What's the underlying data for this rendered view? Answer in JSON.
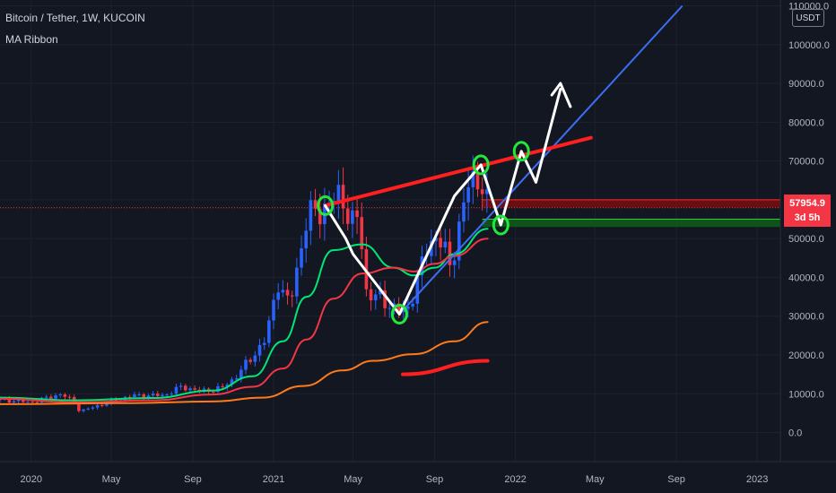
{
  "header": {
    "title": "Bitcoin / Tether, 1W, KUCOIN",
    "indicator": "MA Ribbon"
  },
  "price_scale": {
    "unit": "USDT",
    "current_price": "57954.9",
    "countdown": "3d 5h"
  },
  "colors": {
    "background": "#131722",
    "grid": "#1e222d",
    "up": "#2962ff",
    "down": "#f23645",
    "ma_fast": "#00e676",
    "ma_mid": "#f23645",
    "ma_slow": "#ff7a1a",
    "trend_line": "#3d6ff5",
    "resistance": "#ff1f1f",
    "pattern": "#ffffff",
    "circles": "#22e83a",
    "zone_red": "#7a0e0e",
    "zone_green": "#0f5a1a",
    "axis_text": "#b2b5be"
  },
  "chart_data": {
    "type": "candlestick",
    "title": "Bitcoin / Tether, 1W, KUCOIN",
    "indicator": "MA Ribbon",
    "y_ticks": [
      0,
      10000,
      20000,
      30000,
      40000,
      50000,
      60000,
      70000,
      80000,
      90000,
      100000,
      110000
    ],
    "y_tick_labels": [
      "0.0",
      "10000.0",
      "20000.0",
      "30000.0",
      "40000.0",
      "50000.0",
      "60000.0",
      "70000.0",
      "80000.0",
      "90000.0",
      "100000.0",
      "110000.0"
    ],
    "ylim": [
      -7500,
      111500
    ],
    "xlim": [
      "2019-11-15",
      "2023-02-05"
    ],
    "x_ticks": [
      "2020-01-01",
      "2020-05-01",
      "2020-09-01",
      "2021-01-01",
      "2021-05-01",
      "2021-09-01",
      "2022-01-01",
      "2022-05-01",
      "2022-09-01",
      "2023-01-01"
    ],
    "x_tick_labels": [
      "2020",
      "May",
      "Sep",
      "2021",
      "May",
      "Sep",
      "2022",
      "May",
      "Sep",
      "2023"
    ],
    "close_anchors": [
      [
        "2019-11-15",
        8500
      ],
      [
        "2020-01-01",
        7800
      ],
      [
        "2020-02-15",
        9900
      ],
      [
        "2020-03-05",
        8000
      ],
      [
        "2020-03-15",
        5400
      ],
      [
        "2020-04-15",
        7200
      ],
      [
        "2020-06-01",
        9500
      ],
      [
        "2020-07-20",
        9600
      ],
      [
        "2020-08-15",
        11800
      ],
      [
        "2020-09-15",
        10600
      ],
      [
        "2020-10-15",
        11500
      ],
      [
        "2020-11-01",
        13700
      ],
      [
        "2020-11-25",
        18500
      ],
      [
        "2020-12-20",
        24000
      ],
      [
        "2021-01-08",
        39000
      ],
      [
        "2021-01-25",
        32500
      ],
      [
        "2021-02-21",
        56000
      ],
      [
        "2021-03-10",
        57000
      ],
      [
        "2021-04-14",
        61500
      ],
      [
        "2021-04-28",
        53500
      ],
      [
        "2021-05-10",
        56000
      ],
      [
        "2021-05-20",
        36500
      ],
      [
        "2021-06-20",
        33500
      ],
      [
        "2021-07-20",
        30500
      ],
      [
        "2021-08-20",
        47000
      ],
      [
        "2021-09-05",
        51500
      ],
      [
        "2021-09-25",
        42500
      ],
      [
        "2021-10-20",
        63000
      ],
      [
        "2021-11-08",
        66500
      ],
      [
        "2021-11-20",
        57954.9
      ]
    ],
    "moving_averages": [
      {
        "color": "ma_fast",
        "points": [
          [
            "2019-11-15",
            9000
          ],
          [
            "2020-03-10",
            8300
          ],
          [
            "2020-07-01",
            8900
          ],
          [
            "2020-10-01",
            10800
          ],
          [
            "2020-12-01",
            14500
          ],
          [
            "2021-01-15",
            23500
          ],
          [
            "2021-02-20",
            35000
          ],
          [
            "2021-04-01",
            47000
          ],
          [
            "2021-05-15",
            48500
          ],
          [
            "2021-07-01",
            42500
          ],
          [
            "2021-08-01",
            40500
          ],
          [
            "2021-09-01",
            42500
          ],
          [
            "2021-10-01",
            46000
          ],
          [
            "2021-11-20",
            52500
          ]
        ]
      },
      {
        "color": "ma_mid",
        "points": [
          [
            "2019-11-15",
            8700
          ],
          [
            "2020-03-10",
            7800
          ],
          [
            "2020-07-01",
            8300
          ],
          [
            "2020-10-01",
            9800
          ],
          [
            "2020-12-01",
            11800
          ],
          [
            "2021-01-15",
            16500
          ],
          [
            "2021-02-20",
            24000
          ],
          [
            "2021-04-01",
            34500
          ],
          [
            "2021-05-15",
            41000
          ],
          [
            "2021-07-01",
            42500
          ],
          [
            "2021-08-01",
            41500
          ],
          [
            "2021-09-01",
            43500
          ],
          [
            "2021-10-01",
            45500
          ],
          [
            "2021-11-20",
            50000
          ]
        ]
      },
      {
        "color": "ma_slow",
        "points": [
          [
            "2019-11-15",
            7300
          ],
          [
            "2020-06-01",
            7600
          ],
          [
            "2020-10-01",
            8000
          ],
          [
            "2020-12-15",
            9000
          ],
          [
            "2021-02-15",
            12000
          ],
          [
            "2021-04-15",
            16000
          ],
          [
            "2021-06-01",
            18500
          ],
          [
            "2021-08-01",
            20200
          ],
          [
            "2021-10-01",
            23500
          ],
          [
            "2021-11-20",
            28500
          ]
        ]
      },
      {
        "color": "resistance",
        "points": [
          [
            "2021-07-15",
            15000
          ],
          [
            "2021-11-20",
            18500
          ]
        ],
        "width": 4
      }
    ],
    "annotations": {
      "resistance_line": [
        [
          "2021-03-20",
          58500
        ],
        [
          "2022-04-25",
          76000
        ]
      ],
      "trend_line": [
        [
          "2021-07-10",
          30500
        ],
        [
          "2022-09-10",
          110000
        ]
      ],
      "pattern_path": [
        [
          "2021-03-20",
          58500
        ],
        [
          "2021-04-20",
          50000
        ],
        [
          "2021-05-01",
          46000
        ],
        [
          "2021-07-10",
          30500
        ],
        [
          "2021-10-01",
          61000
        ],
        [
          "2021-11-10",
          69000
        ],
        [
          "2021-12-10",
          53500
        ],
        [
          "2022-01-10",
          72500
        ],
        [
          "2022-02-01",
          64500
        ],
        [
          "2022-03-10",
          88500
        ]
      ],
      "arrow_head": [
        [
          "2022-02-25",
          87000
        ],
        [
          "2022-03-10",
          90000
        ],
        [
          "2022-03-25",
          84000
        ]
      ],
      "circles": [
        [
          "2021-03-20",
          58500
        ],
        [
          "2021-07-10",
          30500
        ],
        [
          "2021-11-10",
          69000
        ],
        [
          "2021-12-10",
          53500
        ],
        [
          "2022-01-10",
          72500
        ]
      ],
      "red_zone": [
        58000,
        60000
      ],
      "green_zone": [
        53000,
        55000
      ],
      "price_line": 57954.9
    }
  }
}
